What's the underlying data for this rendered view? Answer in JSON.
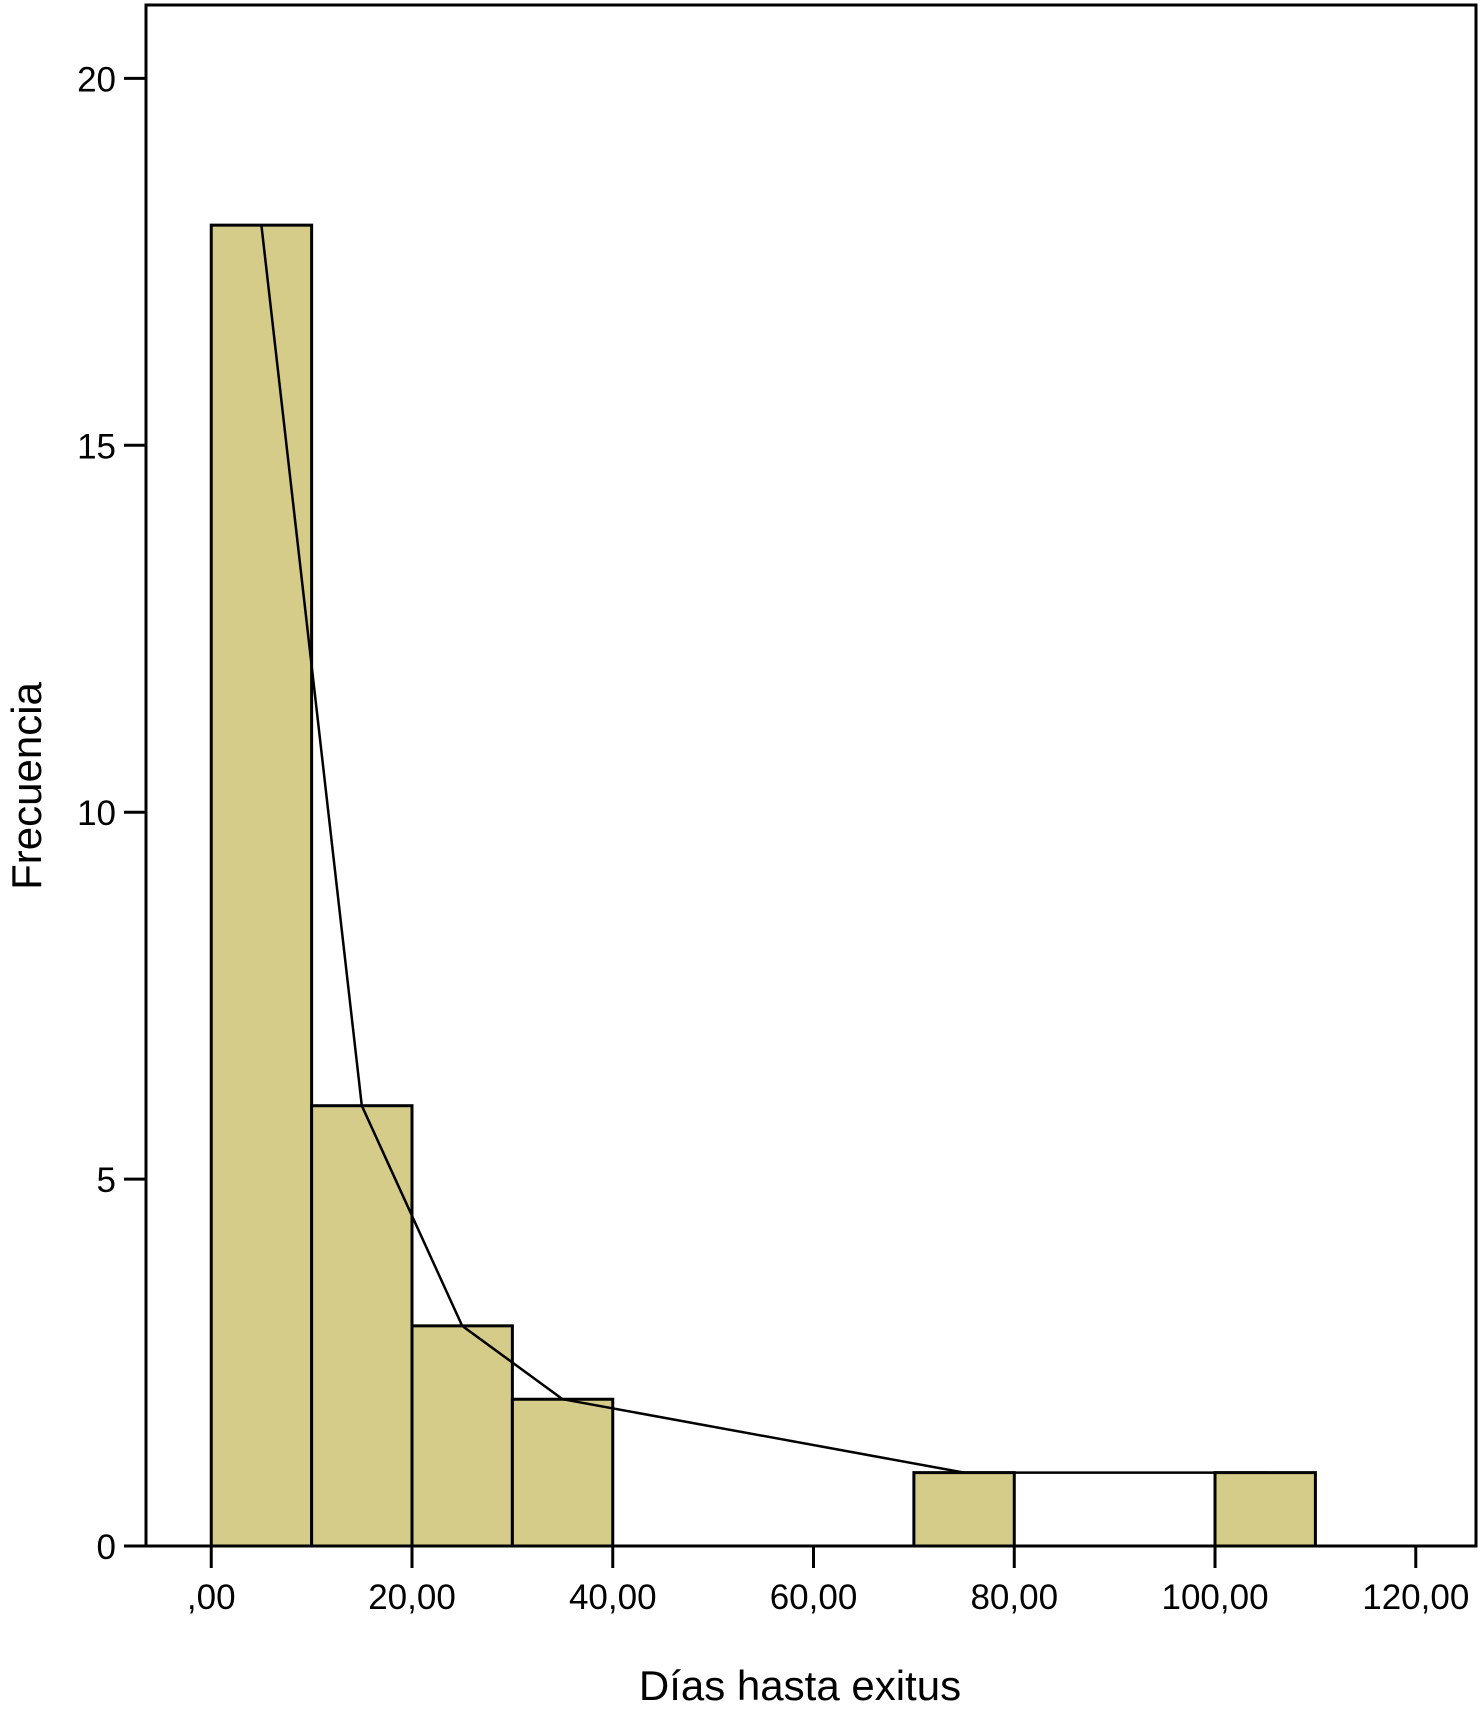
{
  "chart_data": {
    "type": "bar",
    "subtype": "histogram",
    "title": "",
    "xlabel": "Días hasta exitus",
    "ylabel": "Frecuencia",
    "xlim": [
      -6.5,
      126
    ],
    "ylim": [
      0,
      21
    ],
    "xticks": [
      0,
      20,
      40,
      60,
      80,
      100,
      120
    ],
    "xtick_labels": [
      ",00",
      "20,00",
      "40,00",
      "60,00",
      "80,00",
      "100,00",
      "120,00"
    ],
    "yticks": [
      0,
      5,
      10,
      15,
      20
    ],
    "ytick_labels": [
      "0",
      "5",
      "10",
      "15",
      "20"
    ],
    "bins": [
      {
        "start": 0,
        "end": 10,
        "count": 18
      },
      {
        "start": 10,
        "end": 20,
        "count": 6
      },
      {
        "start": 20,
        "end": 30,
        "count": 3
      },
      {
        "start": 30,
        "end": 40,
        "count": 2
      },
      {
        "start": 70,
        "end": 80,
        "count": 1
      },
      {
        "start": 100,
        "end": 110,
        "count": 1
      }
    ],
    "frequency_polygon": {
      "x": [
        5,
        15,
        25,
        35,
        75,
        105
      ],
      "y": [
        18,
        6,
        3,
        2,
        1,
        1
      ]
    },
    "grid": false,
    "legend": "none",
    "colors": {
      "bar_fill": "#d5cc8a",
      "bar_stroke": "#000000",
      "line": "#000000",
      "axis": "#000000",
      "background": "#ffffff"
    }
  }
}
